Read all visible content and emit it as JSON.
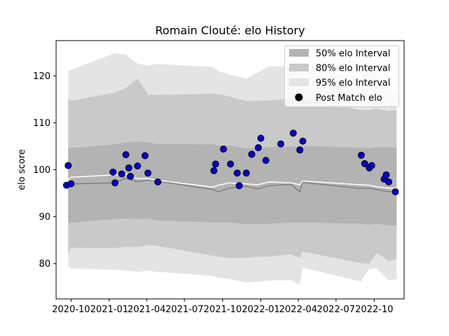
{
  "chart_data": {
    "type": "line",
    "title": "Romain Clouté: elo History",
    "xlabel": "",
    "ylabel": "elo score",
    "ylim": [
      72.5,
      127.5
    ],
    "xlim": [
      "2020-08-26",
      "2022-12-12"
    ],
    "grid": false,
    "legend_placement": "top-right",
    "x_ticks": [
      "2020-10",
      "2021-01",
      "2021-04",
      "2021-07",
      "2021-10",
      "2022-01",
      "2022-04",
      "2022-07",
      "2022-10"
    ],
    "y_ticks": [
      80,
      90,
      100,
      110,
      120
    ],
    "legend": [
      "50% elo Interval",
      "80% elo Interval",
      "95% elo Interval",
      "Post Match elo"
    ],
    "colors": {
      "band95": "#e4e4e4",
      "band80": "#c9c9c9",
      "band50": "#b3b3b3",
      "median_line": "#808080",
      "mean_line": "#ffffff",
      "points": "#0000cc"
    },
    "timeline": {
      "dates": [
        "2020-09-24",
        "2020-10-01",
        "2021-01-13",
        "2021-02-10",
        "2021-03-10",
        "2021-04-04",
        "2021-04-25",
        "2021-09-07",
        "2021-09-21",
        "2021-10-16",
        "2021-11-27",
        "2021-12-24",
        "2022-01-20",
        "2022-03-15",
        "2022-04-05",
        "2022-04-11",
        "2022-08-30",
        "2022-09-18",
        "2022-10-07",
        "2022-11-05",
        "2022-11-24"
      ],
      "band95_low": [
        79.5,
        79,
        78.7,
        78.5,
        78.3,
        78.5,
        78.3,
        77.4,
        77,
        76.8,
        76,
        76.2,
        76.4,
        76.5,
        75.5,
        79.2,
        76.2,
        78.8,
        79,
        76.5,
        76.7
      ],
      "band95_high": [
        121,
        121.3,
        124.8,
        124.5,
        122.6,
        122.2,
        122.5,
        121.9,
        121,
        120.3,
        119.4,
        120.7,
        122,
        122,
        122.3,
        121.8,
        119.6,
        121,
        120.7,
        117.1,
        117
      ],
      "band80_low": [
        82.1,
        83.4,
        83.3,
        83.6,
        83.5,
        84,
        83.8,
        81.7,
        81.5,
        81.2,
        81.2,
        81.5,
        81.5,
        82,
        81.2,
        82.6,
        80.1,
        80,
        82.3,
        80.5,
        81
      ],
      "band80_high": [
        115,
        114.7,
        116.4,
        117.4,
        119.4,
        116,
        115.9,
        116.2,
        116.1,
        115.6,
        114.6,
        114.7,
        114.8,
        115.1,
        115.1,
        115.2,
        112.7,
        112.7,
        113,
        112.5,
        112.7
      ],
      "band50_low": [
        88.8,
        88.7,
        89.5,
        89.6,
        89.5,
        89.6,
        89.2,
        88.8,
        88.8,
        88.8,
        88.4,
        88.4,
        88.5,
        88.8,
        88.7,
        88.8,
        88.5,
        88.3,
        88.5,
        88.2,
        88.1
      ],
      "band50_high": [
        104.5,
        104.6,
        105.4,
        105.8,
        106,
        105.8,
        105.5,
        105.4,
        105.1,
        105.1,
        104.6,
        104.6,
        104.8,
        104.9,
        105.1,
        105.1,
        104.7,
        104.6,
        104.8,
        104.8,
        104.7
      ],
      "median": [
        96.7,
        97,
        97.2,
        98.2,
        97.4,
        97.8,
        97.6,
        95.8,
        95.3,
        96.1,
        96.5,
        95.9,
        96.6,
        96.9,
        95.3,
        97.3,
        96,
        96.1,
        95.8,
        95.3,
        95.3
      ],
      "mean": [
        97.9,
        98.4,
        98.9,
        99.1,
        98.1,
        98.1,
        97.8,
        96.3,
        96.7,
        97.2,
        97,
        96.8,
        97.4,
        97.2,
        96.8,
        97.6,
        96.8,
        96.7,
        96.4,
        96.1,
        96.1
      ]
    },
    "series": [
      {
        "name": "Post Match elo",
        "points": [
          {
            "x": "2020-09-20",
            "y": 96.7
          },
          {
            "x": "2020-09-24",
            "y": 100.9
          },
          {
            "x": "2020-10-01",
            "y": 97
          },
          {
            "x": "2021-01-10",
            "y": 99.5
          },
          {
            "x": "2021-01-15",
            "y": 97.2
          },
          {
            "x": "2021-01-31",
            "y": 99.1
          },
          {
            "x": "2021-02-10",
            "y": 103.2
          },
          {
            "x": "2021-02-17",
            "y": 100.4
          },
          {
            "x": "2021-02-21",
            "y": 98.6
          },
          {
            "x": "2021-03-10",
            "y": 100.8
          },
          {
            "x": "2021-03-28",
            "y": 103
          },
          {
            "x": "2021-04-04",
            "y": 99.3
          },
          {
            "x": "2021-04-28",
            "y": 97.4
          },
          {
            "x": "2021-09-10",
            "y": 99.8
          },
          {
            "x": "2021-09-14",
            "y": 101.2
          },
          {
            "x": "2021-10-03",
            "y": 104.4
          },
          {
            "x": "2021-10-20",
            "y": 101.2
          },
          {
            "x": "2021-11-05",
            "y": 99.3
          },
          {
            "x": "2021-11-10",
            "y": 96.6
          },
          {
            "x": "2021-11-27",
            "y": 99.3
          },
          {
            "x": "2021-12-10",
            "y": 103.3
          },
          {
            "x": "2021-12-26",
            "y": 104.7
          },
          {
            "x": "2022-01-01",
            "y": 106.7
          },
          {
            "x": "2022-01-13",
            "y": 102
          },
          {
            "x": "2022-02-18",
            "y": 105.5
          },
          {
            "x": "2022-03-20",
            "y": 107.8
          },
          {
            "x": "2022-04-05",
            "y": 104.2
          },
          {
            "x": "2022-04-12",
            "y": 106.1
          },
          {
            "x": "2022-08-31",
            "y": 103.1
          },
          {
            "x": "2022-09-08",
            "y": 101.3
          },
          {
            "x": "2022-09-19",
            "y": 100.4
          },
          {
            "x": "2022-09-25",
            "y": 100.9
          },
          {
            "x": "2022-10-25",
            "y": 98
          },
          {
            "x": "2022-10-30",
            "y": 98.9
          },
          {
            "x": "2022-11-05",
            "y": 97.4
          },
          {
            "x": "2022-11-21",
            "y": 95.3
          }
        ]
      }
    ]
  }
}
